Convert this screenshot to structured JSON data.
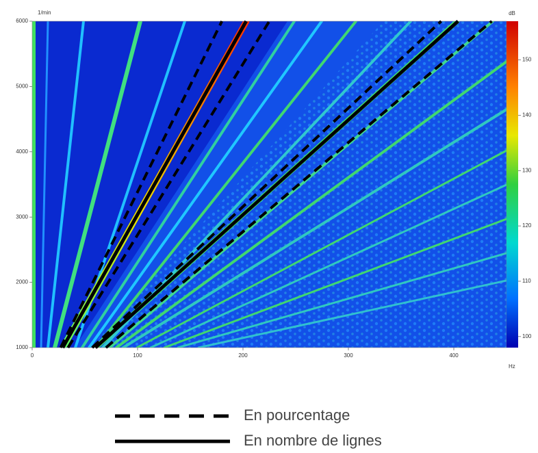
{
  "chart_data": {
    "type": "line",
    "y_label": "1/min",
    "x_label": "Hz",
    "xlim": [
      0,
      450
    ],
    "xticks": [
      0,
      100,
      200,
      300,
      400
    ],
    "ylim": [
      1000,
      6000
    ],
    "yticks": [
      1000,
      2000,
      3000,
      4000,
      5000,
      6000
    ],
    "colorbar": {
      "title": "dB",
      "lim": [
        98,
        157
      ],
      "ticks": [
        100,
        110,
        120,
        130,
        140,
        150
      ]
    },
    "series": [
      {
        "name": "En pourcentage",
        "style": "dashed",
        "color": "#000000",
        "x": [
          27,
          180
        ],
        "values": [
          1000,
          6000
        ]
      },
      {
        "name": "En pourcentage",
        "style": "dashed",
        "color": "#000000",
        "x": [
          34,
          225
        ],
        "values": [
          1000,
          6000
        ]
      },
      {
        "name": "En pourcentage",
        "style": "dashed",
        "color": "#000000",
        "x": [
          57,
          388
        ],
        "values": [
          1000,
          6000
        ]
      },
      {
        "name": "En pourcentage",
        "style": "dashed",
        "color": "#000000",
        "x": [
          70,
          436
        ],
        "values": [
          1000,
          6000
        ]
      },
      {
        "name": "En nombre de lignes",
        "style": "solid",
        "color": "#000000",
        "x": [
          29,
          203
        ],
        "values": [
          1000,
          6000
        ]
      },
      {
        "name": "En nombre de lignes",
        "style": "solid",
        "color": "#000000",
        "x": [
          60,
          404
        ],
        "values": [
          1000,
          6000
        ]
      }
    ],
    "legend": [
      {
        "label": "En pourcentage",
        "style": "dashed"
      },
      {
        "label": "En nombre de lignes",
        "style": "solid"
      }
    ]
  }
}
